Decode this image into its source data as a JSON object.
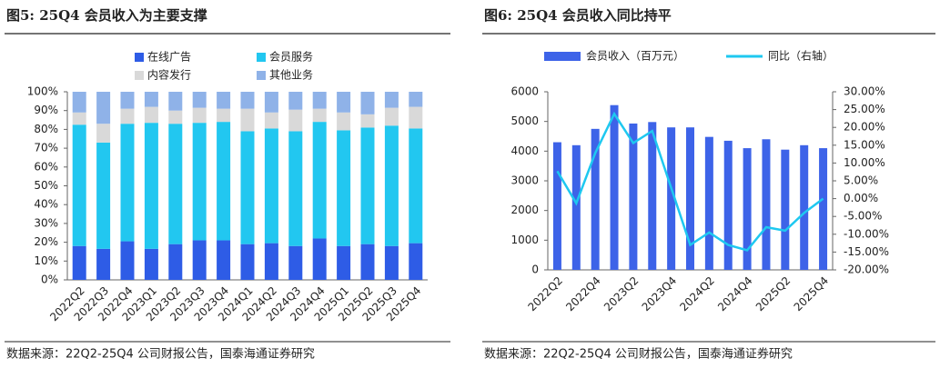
{
  "chart_data": [
    {
      "type": "bar",
      "stacked": true,
      "title": "图5: 25Q4 会员收入为主要支撑",
      "source": "数据来源：22Q2-25Q4 公司财报公告，国泰海通证券研究",
      "categories": [
        "2022Q2",
        "2022Q3",
        "2022Q4",
        "2023Q1",
        "2023Q2",
        "2023Q3",
        "2023Q4",
        "2024Q1",
        "2024Q2",
        "2024Q3",
        "2024Q4",
        "2025Q1",
        "2025Q2",
        "2025Q3",
        "2025Q4"
      ],
      "series": [
        {
          "name": "在线广告",
          "color": "#2e5ce6",
          "values": [
            18,
            16.5,
            20.5,
            16.5,
            19,
            21,
            21,
            19,
            19.5,
            18,
            22,
            18,
            19,
            18,
            19.5
          ]
        },
        {
          "name": "会员服务",
          "color": "#22c7f0",
          "values": [
            64.5,
            56.5,
            62.5,
            67,
            64,
            62.5,
            63,
            60,
            61,
            61,
            62,
            61.5,
            62,
            64,
            61
          ]
        },
        {
          "name": "内容发行",
          "color": "#d9d9d9",
          "values": [
            6.5,
            10,
            8,
            8.5,
            7,
            8,
            7,
            12,
            8.5,
            11.5,
            7,
            9.5,
            7,
            9.5,
            11.5
          ]
        },
        {
          "name": "其他业务",
          "color": "#8fb2e8",
          "values": [
            11,
            17,
            9,
            8,
            10,
            8.5,
            9,
            9,
            11,
            9.5,
            9,
            11,
            12,
            8.5,
            8
          ]
        }
      ],
      "ylim": [
        0,
        100
      ],
      "yticks": [
        {
          "value": 0,
          "label": "0%"
        },
        {
          "value": 10,
          "label": "10%"
        },
        {
          "value": 20,
          "label": "20%"
        },
        {
          "value": 30,
          "label": "30%"
        },
        {
          "value": 40,
          "label": "40%"
        },
        {
          "value": 50,
          "label": "50%"
        },
        {
          "value": 60,
          "label": "60%"
        },
        {
          "value": 70,
          "label": "70%"
        },
        {
          "value": 80,
          "label": "80%"
        },
        {
          "value": 90,
          "label": "90%"
        },
        {
          "value": 100,
          "label": "100%"
        }
      ],
      "legend": "top"
    },
    {
      "type": "bar-line",
      "title": "图6: 25Q4 会员收入同比持平",
      "source": "数据来源：22Q2-25Q4 公司财报公告，国泰海通证券研究",
      "categories": [
        "2022Q2",
        null,
        "2022Q4",
        null,
        "2023Q2",
        null,
        "2023Q4",
        null,
        "2024Q2",
        null,
        "2024Q4",
        null,
        "2025Q2",
        null,
        "2025Q4"
      ],
      "series": [
        {
          "name": "会员收入（百万元）",
          "color": "#3d63e8",
          "values": [
            4300,
            4200,
            4750,
            5550,
            4930,
            4980,
            4800,
            4800,
            4480,
            4350,
            4100,
            4400,
            4050,
            4200,
            4100
          ]
        },
        {
          "name": "同比（右轴）",
          "color": "#1ec8f0",
          "axis": "y2",
          "values": [
            7.7,
            -1.3,
            12.8,
            23.8,
            15.6,
            19,
            3,
            -13,
            -9.5,
            -13,
            -14.5,
            -8,
            -9,
            -4,
            0
          ]
        }
      ],
      "ylim": [
        0,
        6000
      ],
      "yticks": [
        0,
        1000,
        2000,
        3000,
        4000,
        5000,
        6000
      ],
      "y2lim": [
        -20,
        30
      ],
      "y2ticks": [
        {
          "value": -20,
          "label": "-20.00%"
        },
        {
          "value": -15,
          "label": "-15.00%"
        },
        {
          "value": -10,
          "label": "-10.00%"
        },
        {
          "value": -5,
          "label": "-5.00%"
        },
        {
          "value": 0,
          "label": "0.00%"
        },
        {
          "value": 5,
          "label": "5.00%"
        },
        {
          "value": 10,
          "label": "10.00%"
        },
        {
          "value": 15,
          "label": "15.00%"
        },
        {
          "value": 20,
          "label": "20.00%"
        },
        {
          "value": 25,
          "label": "25.00%"
        },
        {
          "value": 30,
          "label": "30.00%"
        }
      ],
      "legend": "top"
    }
  ]
}
